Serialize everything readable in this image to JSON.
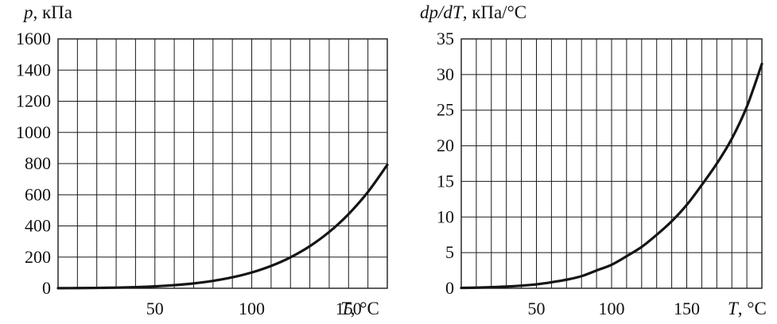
{
  "chart_data": [
    {
      "type": "line",
      "title": "",
      "ylabel_var": "p",
      "ylabel_unit": ", кПа",
      "xlabel_var": "T",
      "xlabel_unit": ", °C",
      "xlim": [
        0,
        170
      ],
      "ylim": [
        0,
        1600
      ],
      "x_ticks": [
        50,
        100,
        150
      ],
      "y_ticks": [
        0,
        200,
        400,
        600,
        800,
        1000,
        1200,
        1400,
        1600
      ],
      "x_grid_step": 10,
      "y_grid_step": 200,
      "grid": true,
      "series": [
        {
          "x": [
            0,
            10,
            20,
            30,
            40,
            50,
            60,
            70,
            80,
            90,
            100,
            110,
            120,
            130,
            140,
            150,
            160,
            170
          ],
          "y": [
            0.6,
            1.2,
            2.3,
            4.2,
            7.4,
            12.3,
            19.9,
            31.2,
            47.4,
            70.1,
            101.3,
            143.3,
            198.5,
            270.1,
            361.4,
            476.0,
            618.1,
            792.0
          ]
        }
      ]
    },
    {
      "type": "line",
      "title": "",
      "ylabel_var": "dp/dT",
      "ylabel_unit": ", кПа/°C",
      "xlabel_var": "T",
      "xlabel_unit": ", °C",
      "xlim": [
        0,
        200
      ],
      "ylim": [
        0,
        35
      ],
      "x_ticks": [
        50,
        100,
        150
      ],
      "y_ticks": [
        0,
        5,
        10,
        15,
        20,
        25,
        30,
        35
      ],
      "x_grid_step": 10,
      "y_grid_step": 5,
      "grid": true,
      "series": [
        {
          "x": [
            0,
            10,
            20,
            30,
            40,
            50,
            60,
            70,
            80,
            90,
            100,
            110,
            120,
            130,
            140,
            150,
            160,
            170,
            180,
            190,
            200
          ],
          "y": [
            0.05,
            0.08,
            0.15,
            0.24,
            0.37,
            0.55,
            0.84,
            1.2,
            1.7,
            2.5,
            3.3,
            4.5,
            5.8,
            7.5,
            9.4,
            11.7,
            14.5,
            17.5,
            21.0,
            25.5,
            31.5
          ]
        }
      ]
    }
  ]
}
